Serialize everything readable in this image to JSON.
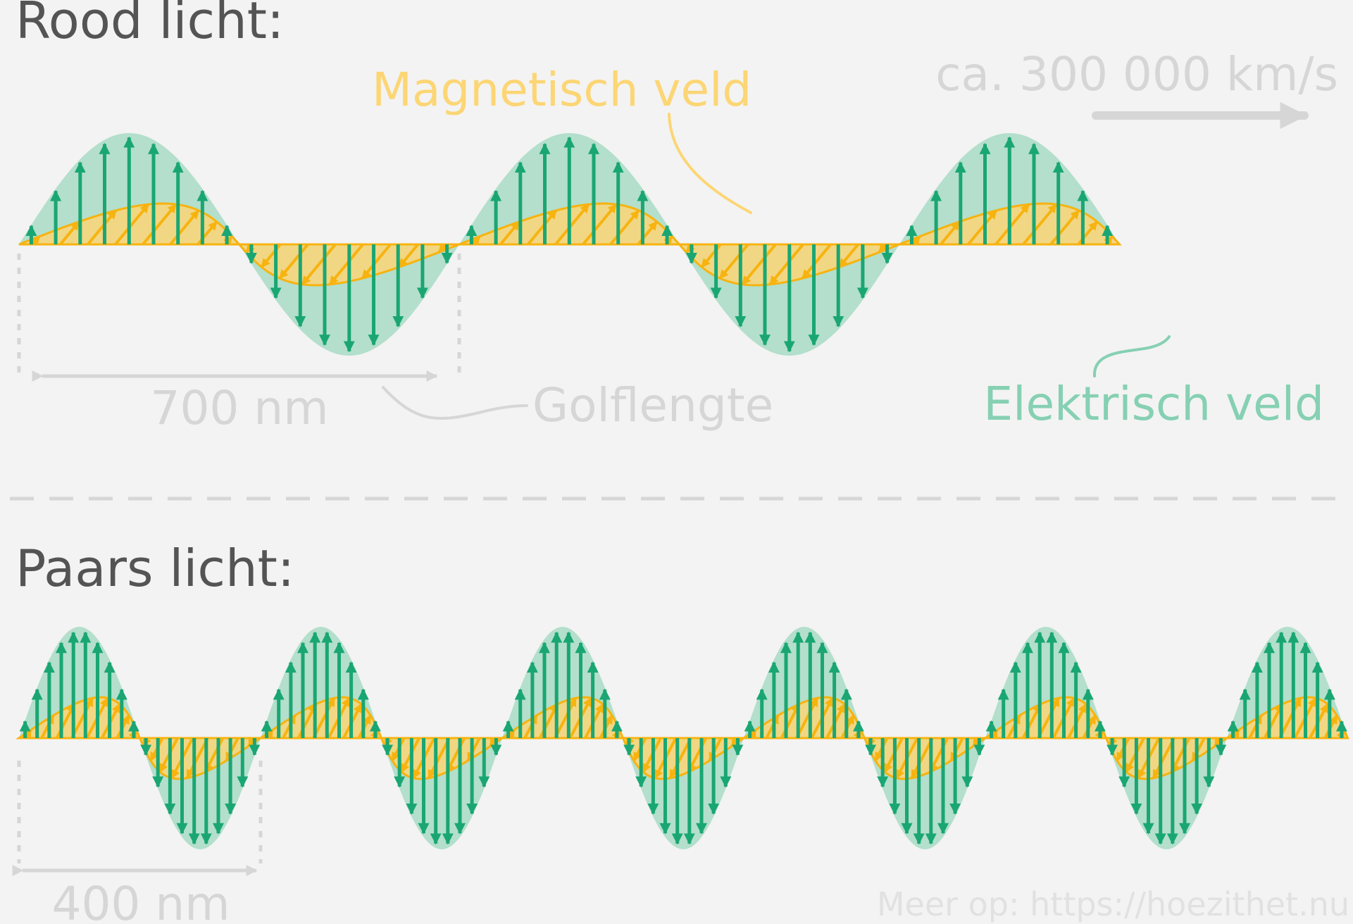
{
  "sections": {
    "red": {
      "title": "Rood licht:",
      "wavelength": "700 nm"
    },
    "purple": {
      "title": "Paars licht:",
      "wavelength": "400 nm"
    }
  },
  "labels": {
    "magnetic_field": "Magnetisch veld",
    "electric_field": "Elektrisch veld",
    "wavelength": "Golflengte",
    "speed": "ca. 300 000 km/s"
  },
  "credit": "Meer op: https://hoezithet.nu",
  "colors": {
    "background": "#f3f3f3",
    "electric_fill": "#b3dfcc",
    "electric_arrow": "#1aa673",
    "magnetic_fill": "#fcd675",
    "magnetic_arrow": "#f7b30f",
    "annotation": "#d6d6d6",
    "title": "#545454"
  }
}
